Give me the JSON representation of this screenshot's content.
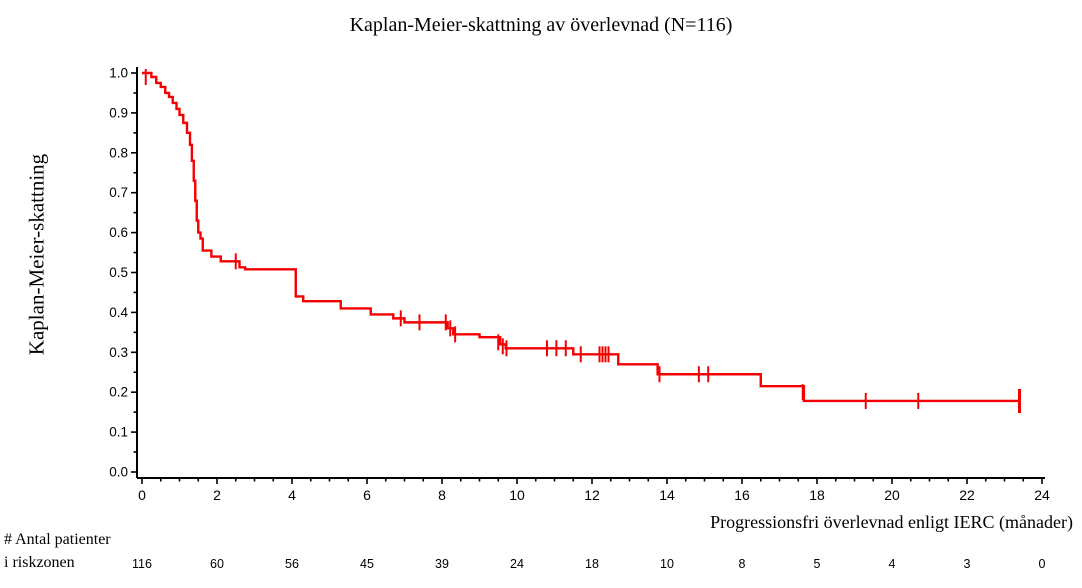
{
  "chart_data": {
    "type": "line",
    "subtype": "kaplan-meier-step",
    "title": "Kaplan-Meier-skattning av överlevnad (N=116)",
    "ylabel": "Kaplan-Meier-skattning",
    "xlabel": "Progressionsfri överlevnad enligt IERC (månader)",
    "xlim": [
      0,
      24
    ],
    "ylim": [
      0.0,
      1.0
    ],
    "xticks": [
      0,
      2,
      4,
      6,
      8,
      10,
      12,
      14,
      16,
      18,
      20,
      22,
      24
    ],
    "x_minor_step": 0.5,
    "yticks": [
      0.0,
      0.1,
      0.2,
      0.3,
      0.4,
      0.5,
      0.6,
      0.7,
      0.8,
      0.9,
      1.0
    ],
    "y_minor_step": 0.05,
    "grid": false,
    "curve_color": "#f50000",
    "axis_color": "#000000",
    "n_total": 116,
    "km_steps": [
      [
        0,
        1.0
      ],
      [
        0.25,
        0.99
      ],
      [
        0.38,
        0.975
      ],
      [
        0.5,
        0.965
      ],
      [
        0.62,
        0.95
      ],
      [
        0.72,
        0.94
      ],
      [
        0.82,
        0.925
      ],
      [
        0.92,
        0.91
      ],
      [
        1.0,
        0.895
      ],
      [
        1.1,
        0.875
      ],
      [
        1.2,
        0.85
      ],
      [
        1.28,
        0.82
      ],
      [
        1.33,
        0.78
      ],
      [
        1.38,
        0.73
      ],
      [
        1.42,
        0.68
      ],
      [
        1.46,
        0.63
      ],
      [
        1.5,
        0.6
      ],
      [
        1.56,
        0.585
      ],
      [
        1.62,
        0.555
      ],
      [
        1.85,
        0.54
      ],
      [
        2.1,
        0.528
      ],
      [
        2.6,
        0.513
      ],
      [
        2.75,
        0.508
      ],
      [
        4.1,
        0.44
      ],
      [
        4.3,
        0.428
      ],
      [
        5.3,
        0.41
      ],
      [
        6.1,
        0.395
      ],
      [
        6.7,
        0.385
      ],
      [
        7.0,
        0.375
      ],
      [
        8.15,
        0.36
      ],
      [
        8.3,
        0.345
      ],
      [
        9.0,
        0.338
      ],
      [
        9.55,
        0.32
      ],
      [
        9.7,
        0.31
      ],
      [
        11.5,
        0.295
      ],
      [
        12.7,
        0.27
      ],
      [
        13.75,
        0.245
      ],
      [
        16.5,
        0.215
      ],
      [
        17.65,
        0.178
      ],
      [
        23.4,
        0.178
      ]
    ],
    "censor_marks": [
      [
        0.1,
        0.99
      ],
      [
        2.5,
        0.528
      ],
      [
        6.9,
        0.385
      ],
      [
        7.4,
        0.375
      ],
      [
        8.1,
        0.375
      ],
      [
        8.22,
        0.36
      ],
      [
        8.35,
        0.345
      ],
      [
        9.5,
        0.325
      ],
      [
        9.62,
        0.315
      ],
      [
        9.72,
        0.31
      ],
      [
        10.8,
        0.31
      ],
      [
        11.05,
        0.31
      ],
      [
        11.3,
        0.31
      ],
      [
        11.7,
        0.295
      ],
      [
        12.2,
        0.295
      ],
      [
        12.28,
        0.295
      ],
      [
        12.36,
        0.295
      ],
      [
        12.44,
        0.295
      ],
      [
        13.8,
        0.245
      ],
      [
        14.85,
        0.245
      ],
      [
        15.1,
        0.245
      ],
      [
        17.62,
        0.2
      ],
      [
        19.3,
        0.178
      ],
      [
        20.7,
        0.178
      ]
    ],
    "final_censor": [
      23.4,
      0.178
    ],
    "risk_table": {
      "label_line1": "# Antal patienter",
      "label_line2": "i riskzonen",
      "times": [
        0,
        2,
        4,
        6,
        8,
        10,
        12,
        14,
        16,
        18,
        20,
        22,
        24
      ],
      "counts": [
        116,
        60,
        56,
        45,
        39,
        24,
        18,
        10,
        8,
        5,
        4,
        3,
        0
      ]
    }
  }
}
